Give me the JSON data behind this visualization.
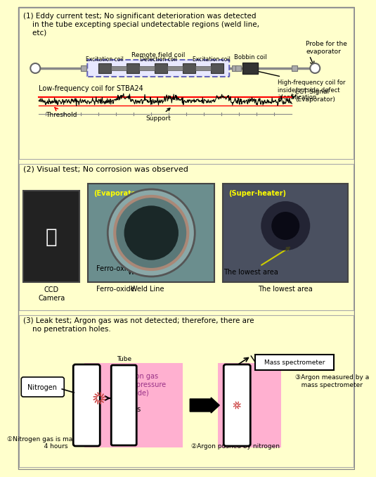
{
  "bg_color": "#FFFFCC",
  "panel1": {
    "title": "(1) Eddy current test; No significant deterioration was detected\n    in the tube excepting special undetectable regions (weld line,\n    etc)",
    "label_remote": "Remote field coil",
    "label_excitation1": "Excitation coil",
    "label_detection": "Detection coil",
    "label_excitation2": "Excitation coil",
    "label_bobbin": "Bobbin coil",
    "label_probe": "Probe for the\nevaporator",
    "label_hf": "High-frequency coil for\ninside/outside defect\nidentification",
    "label_lf": "Low-frequency coil for STBA24",
    "label_ect": "ECT Signal\n(Evaporator)",
    "label_threshold": "Threshold",
    "label_support": "Support"
  },
  "panel2": {
    "title": "(2) Visual test; No corrosion was observed",
    "label_ccd": "CCD\nCamera",
    "label_evap": "(Evaporator)",
    "label_ferro": "Ferro-oxide",
    "label_weld": "Weld Line",
    "label_super": "(Super-heater)",
    "label_lowest": "The lowest area"
  },
  "panel3": {
    "title": "(3) Leak test; Argon gas was not detected; therefore, there are\n    no penetration holes.",
    "label_nitrogen": "Nitrogen",
    "label_tube": "Tube",
    "label_argon_gas": "Argon gas\n(High-pressure\nside)",
    "label_pinholes": "Pin-holes",
    "label_mass": "Mass spectrometer",
    "label_step1": "①Nitrogen gas is maintained\n   4 hours",
    "label_step2": "②Argon pushed by nitrogen",
    "label_step3": "③Argon measured by a\n   mass spectrometer"
  },
  "separator_color": "#AAAAAA",
  "arrow_color": "#000000",
  "box_blue": "#6666BB",
  "pink_fill": "#FFB0D0"
}
